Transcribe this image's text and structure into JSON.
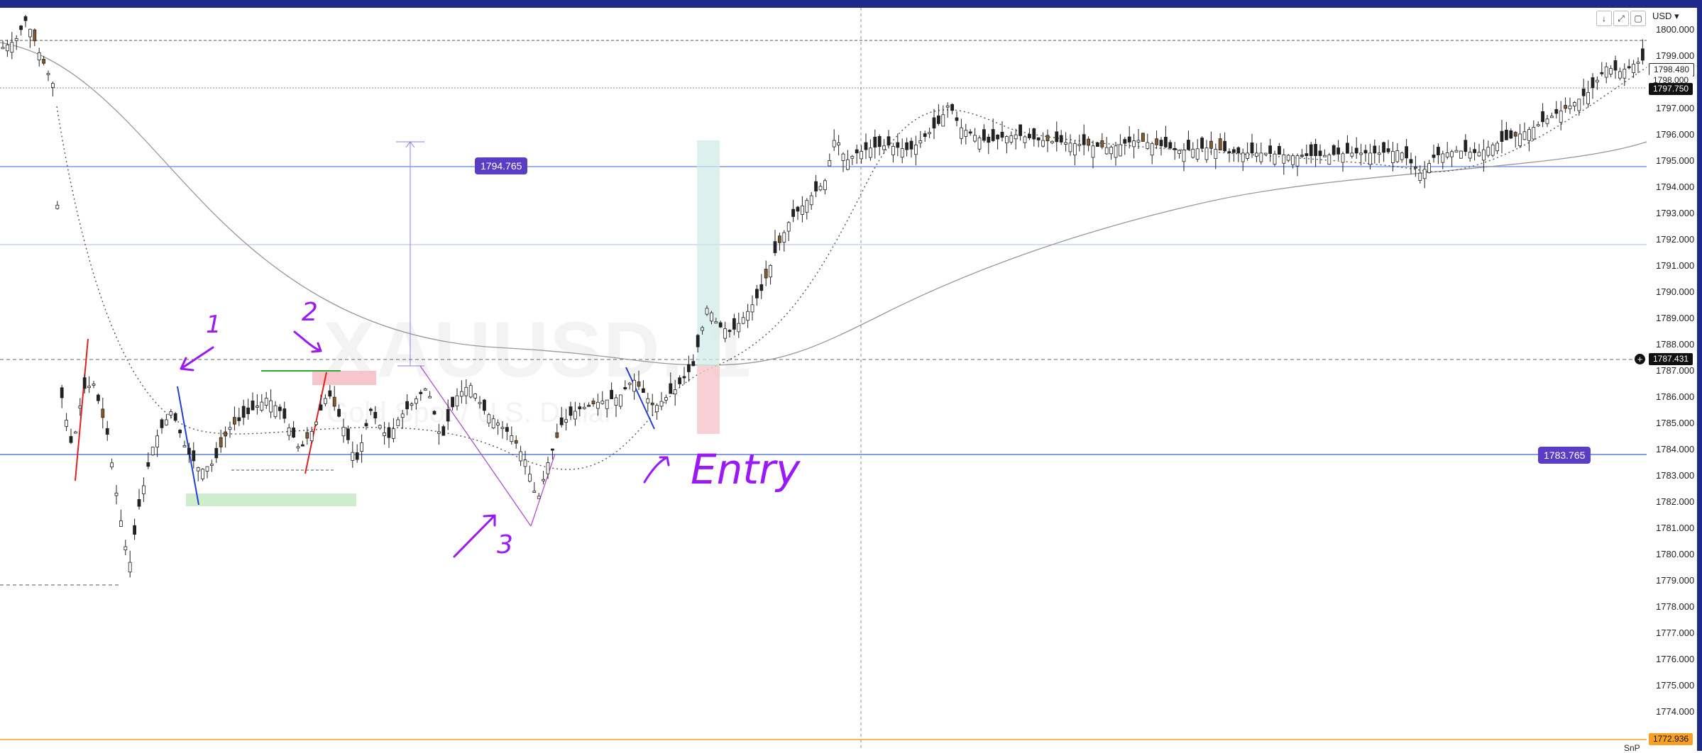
{
  "symbol": {
    "name": "XAUUSD, 1",
    "sub": "Gold Spot / U.S. Dollar"
  },
  "currency": "USD",
  "toolbar_icons": [
    "download-icon",
    "fullscreen-icon",
    "screenshot-icon"
  ],
  "price_axis": [
    "1800.000",
    "1799.000",
    "1797.000",
    "1796.000",
    "1795.000",
    "1794.000",
    "1793.000",
    "1792.000",
    "1791.000",
    "1790.000",
    "1789.000",
    "1788.000",
    "1787.000",
    "1786.000",
    "1785.000",
    "1784.000",
    "1783.000",
    "1782.000",
    "1781.000",
    "1780.000",
    "1779.000",
    "1778.000",
    "1777.000",
    "1776.000",
    "1775.000",
    "1774.000"
  ],
  "axis_tags": {
    "hl_a": "1798.480",
    "hl_b": "1798.000",
    "last": "1797.750",
    "crosshair": "1787.431",
    "bottom": "1772.936",
    "corner": "SnP"
  },
  "price_labels": {
    "upper": "1794.765",
    "lower": "1783.765"
  },
  "annotations": {
    "n1": "1",
    "n2": "2",
    "n3": "3",
    "entry": "Entry"
  },
  "colors": {
    "background": "#ffffff",
    "frame": "#1e2a8a",
    "label": "#5b3cc4",
    "handwriting": "#9b19f5",
    "blue_line": "#7b98ea",
    "bottom_tag": "#f7a024"
  }
}
